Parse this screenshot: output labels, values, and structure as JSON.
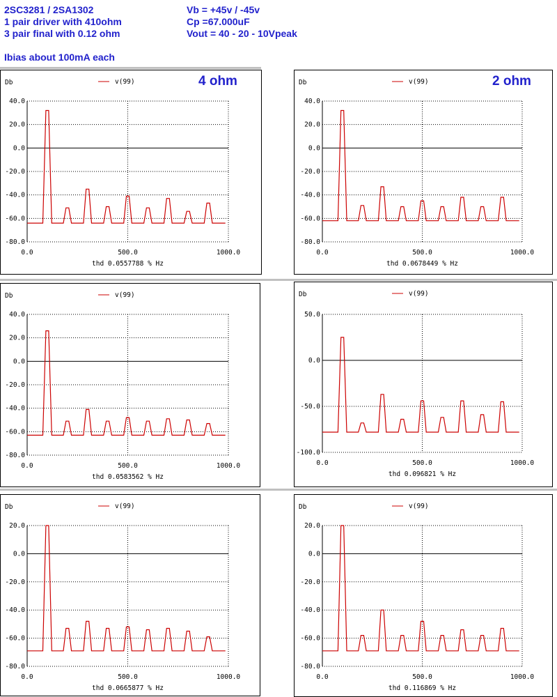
{
  "header": {
    "left": [
      "2SC3281 / 2SA1302",
      "1 pair driver with 410ohm",
      "3 pair final with 0.12 ohm"
    ],
    "right": [
      "Vb = +45v / -45v",
      "Cp =67.000uF",
      "Vout = 40 - 20 - 10Vpeak"
    ],
    "note": "Ibias about 100mA each"
  },
  "colors": {
    "trace": "#cc0000",
    "header": "#2222cc"
  },
  "chart_data": [
    {
      "type": "line",
      "title": "4 ohm",
      "ylabel": "Db",
      "legend": "v(99)",
      "xlabel": "thd 0.0557788 % Hz",
      "xlim": [
        0,
        1000
      ],
      "ylim": [
        -80,
        40
      ],
      "yticks": [
        40,
        20,
        0,
        -20,
        -40,
        -60,
        -80
      ],
      "yticklabels": [
        "40.0",
        "20.0",
        "0.0",
        "-20.0",
        "-40.0",
        "-60.0",
        "-80.0"
      ],
      "xticklabels": [
        "0.0",
        "500.0",
        "1000.0"
      ],
      "floor": -64,
      "harmonics_hz": [
        100,
        200,
        300,
        400,
        500,
        600,
        700,
        800,
        900
      ],
      "peaks_db": [
        32,
        -51,
        -35,
        -50,
        -41,
        -51,
        -43,
        -54,
        -47
      ]
    },
    {
      "type": "line",
      "title": "2 ohm",
      "ylabel": "Db",
      "legend": "v(99)",
      "xlabel": "thd 0.0678449 % Hz",
      "xlim": [
        0,
        1000
      ],
      "ylim": [
        -80,
        40
      ],
      "yticks": [
        40,
        20,
        0,
        -20,
        -40,
        -60,
        -80
      ],
      "yticklabels": [
        "40.0",
        "20.0",
        "0.0",
        "-20.0",
        "-40.0",
        "-60.0",
        "-80.0"
      ],
      "xticklabels": [
        "0.0",
        "500.0",
        "1000.0"
      ],
      "floor": -62,
      "harmonics_hz": [
        100,
        200,
        300,
        400,
        500,
        600,
        700,
        800,
        900
      ],
      "peaks_db": [
        32,
        -49,
        -33,
        -50,
        -45,
        -50,
        -42,
        -50,
        -42
      ]
    },
    {
      "type": "line",
      "title": "",
      "ylabel": "Db",
      "legend": "v(99)",
      "xlabel": "thd 0.0583562 % Hz",
      "xlim": [
        0,
        1000
      ],
      "ylim": [
        -80,
        40
      ],
      "yticks": [
        40,
        20,
        0,
        -20,
        -40,
        -60,
        -80
      ],
      "yticklabels": [
        "40.0",
        "20.0",
        "0.0",
        "-20.0",
        "-40.0",
        "-60.0",
        "-80.0"
      ],
      "xticklabels": [
        "0.0",
        "500.0",
        "1000.0"
      ],
      "floor": -63,
      "harmonics_hz": [
        100,
        200,
        300,
        400,
        500,
        600,
        700,
        800,
        900
      ],
      "peaks_db": [
        26,
        -51,
        -41,
        -51,
        -48,
        -51,
        -49,
        -50,
        -53
      ]
    },
    {
      "type": "line",
      "title": "",
      "ylabel": "Db",
      "legend": "v(99)",
      "xlabel": "thd 0.096821 % Hz",
      "xlim": [
        0,
        1000
      ],
      "ylim": [
        -100,
        50
      ],
      "yticks": [
        50,
        0,
        -50,
        -100
      ],
      "yticklabels": [
        "50.0",
        "0.0",
        "-50.0",
        "-100.0"
      ],
      "xticklabels": [
        "0.0",
        "500.0",
        "1000.0"
      ],
      "floor": -78,
      "harmonics_hz": [
        100,
        200,
        300,
        400,
        500,
        600,
        700,
        800,
        900
      ],
      "peaks_db": [
        25,
        -68,
        -37,
        -64,
        -44,
        -62,
        -44,
        -59,
        -45
      ]
    },
    {
      "type": "line",
      "title": "",
      "ylabel": "Db",
      "legend": "v(99)",
      "xlabel": "thd 0.0665877 % Hz",
      "xlim": [
        0,
        1000
      ],
      "ylim": [
        -80,
        20
      ],
      "yticks": [
        20,
        0,
        -20,
        -40,
        -60,
        -80
      ],
      "yticklabels": [
        "20.0",
        "0.0",
        "-20.0",
        "-40.0",
        "-60.0",
        "-80.0"
      ],
      "xticklabels": [
        "0.0",
        "500.0",
        "1000.0"
      ],
      "floor": -69,
      "harmonics_hz": [
        100,
        200,
        300,
        400,
        500,
        600,
        700,
        800,
        900
      ],
      "peaks_db": [
        20,
        -53,
        -48,
        -53,
        -52,
        -54,
        -53,
        -55,
        -59
      ]
    },
    {
      "type": "line",
      "title": "",
      "ylabel": "Db",
      "legend": "v(99)",
      "xlabel": "thd 0.116869 % Hz",
      "xlim": [
        0,
        1000
      ],
      "ylim": [
        -80,
        20
      ],
      "yticks": [
        20,
        0,
        -20,
        -40,
        -60,
        -80
      ],
      "yticklabels": [
        "20.0",
        "0.0",
        "-20.0",
        "-40.0",
        "-60.0",
        "-80.0"
      ],
      "xticklabels": [
        "0.0",
        "500.0",
        "1000.0"
      ],
      "floor": -69,
      "harmonics_hz": [
        100,
        200,
        300,
        400,
        500,
        600,
        700,
        800,
        900
      ],
      "peaks_db": [
        20,
        -58,
        -40,
        -58,
        -48,
        -58,
        -54,
        -58,
        -53
      ]
    }
  ]
}
